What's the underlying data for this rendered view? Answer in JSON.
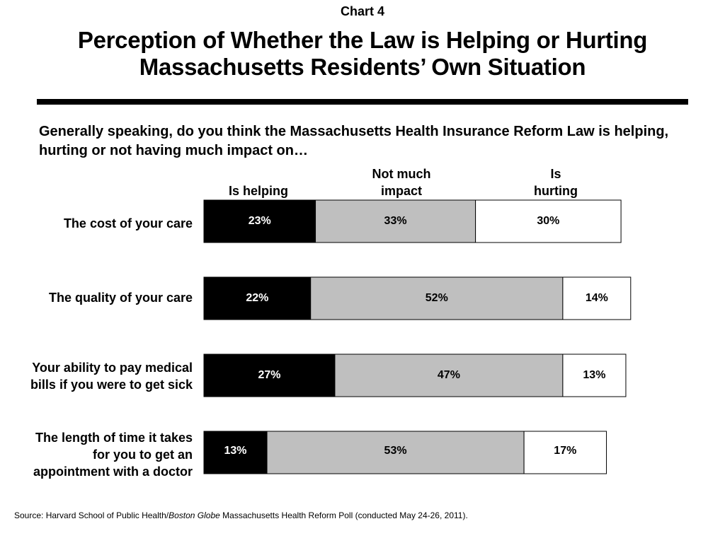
{
  "header": {
    "chart_label": "Chart 4",
    "title_line1": "Perception of Whether the Law is Helping or Hurting",
    "title_line2": "Massachusetts Residents’ Own Situation"
  },
  "question": "Generally speaking, do you think the Massachusetts Health Insurance Reform Law is helping, hurting or not having much impact on…",
  "column_headers": {
    "helping": "Is helping",
    "not_much_line1": "Not much",
    "not_much_line2": "impact",
    "hurting_line1": "Is",
    "hurting_line2": "hurting"
  },
  "category_labels": [
    [
      "The cost of your care"
    ],
    [
      "The quality of your care"
    ],
    [
      "Your ability to pay medical",
      "bills if you were to get sick"
    ],
    [
      "The length of time it takes",
      "for you to get an",
      "appointment with a doctor"
    ]
  ],
  "source": {
    "prefix": "Source: Harvard School of Public Health/",
    "italic": "Boston Globe",
    "suffix": " Massachusetts Health Reform Poll (conducted May 24-26, 2011)."
  },
  "colors": {
    "helping": "#000000",
    "not_much": "#bfbfbf",
    "hurting": "#ffffff"
  },
  "chart_data": {
    "type": "bar",
    "orientation": "horizontal",
    "stacked": true,
    "categories": [
      "The cost of your care",
      "The quality of your care",
      "Your ability to pay medical bills if you were to get sick",
      "The length of time it takes for you to get an appointment with a doctor"
    ],
    "series": [
      {
        "name": "Is helping",
        "values": [
          23,
          22,
          27,
          13
        ]
      },
      {
        "name": "Not much impact",
        "values": [
          33,
          52,
          47,
          53
        ]
      },
      {
        "name": "Is hurting",
        "values": [
          30,
          14,
          13,
          17
        ]
      }
    ],
    "data_labels": [
      [
        "23%",
        "33%",
        "30%"
      ],
      [
        "22%",
        "52%",
        "14%"
      ],
      [
        "27%",
        "47%",
        "13%"
      ],
      [
        "13%",
        "53%",
        "17%"
      ]
    ],
    "title": "Perception of Whether the Law is Helping or Hurting Massachusetts Residents’ Own Situation",
    "legend": "top",
    "grid": false
  }
}
